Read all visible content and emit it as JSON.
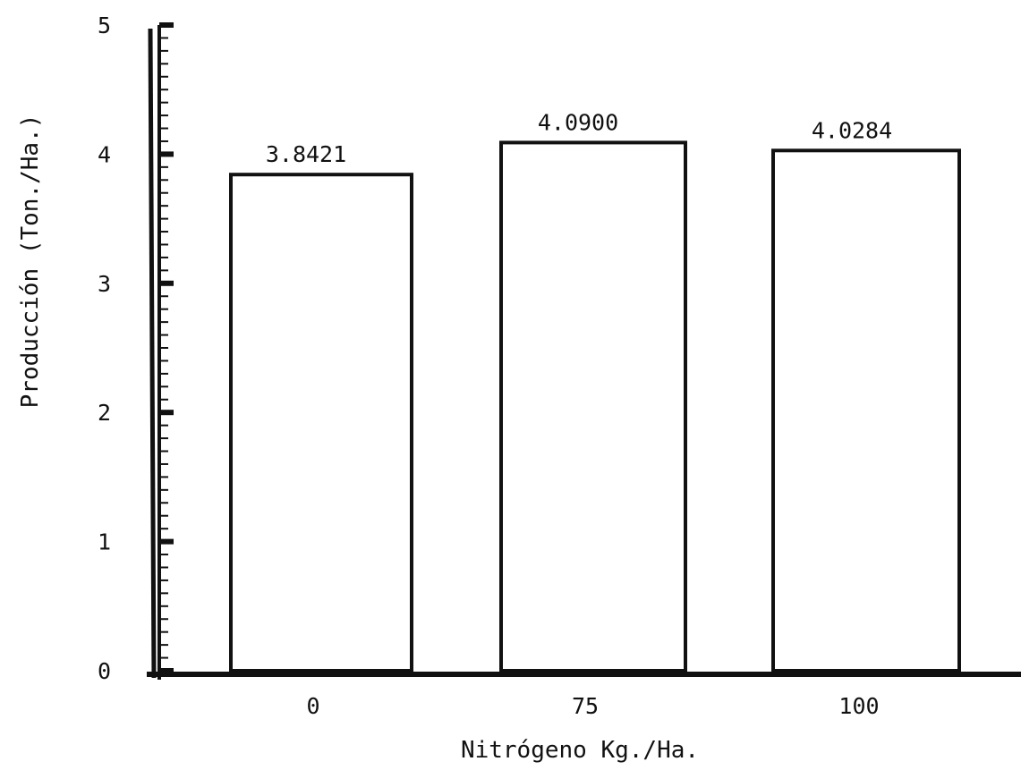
{
  "chart_data": {
    "type": "bar",
    "title": "",
    "xlabel": "Nitrógeno Kg./Ha.",
    "ylabel": "Producción (Ton./Ha.)",
    "categories": [
      "0",
      "75",
      "100"
    ],
    "values": [
      3.8421,
      4.09,
      4.0284
    ],
    "value_labels": [
      "3.8421",
      "4.0900",
      "4.0284"
    ],
    "ylim": [
      0,
      5
    ],
    "yticks": [
      0,
      1,
      2,
      3,
      4,
      5
    ],
    "ytick_labels": [
      "0",
      "1",
      "2",
      "3",
      "4",
      "5"
    ],
    "grid": false,
    "legend": "none",
    "colors": {
      "ink": "#111111",
      "bar_fill": "#ffffff"
    }
  }
}
